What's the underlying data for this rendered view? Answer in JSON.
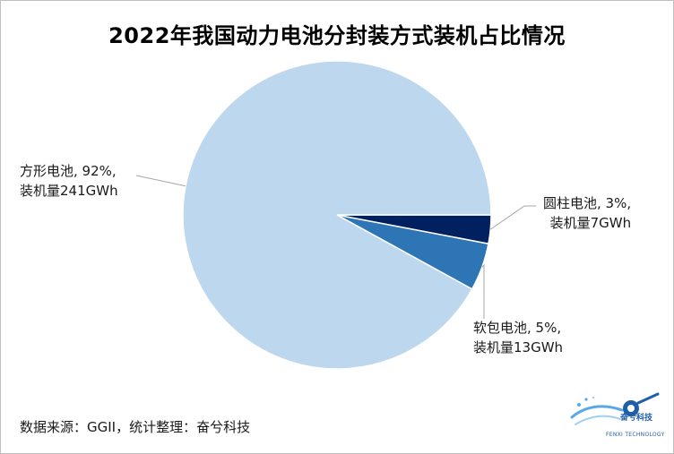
{
  "chart_data": {
    "type": "pie",
    "title": "2022年我国动力电池分封装方式装机占比情况",
    "slices": [
      {
        "name": "方形电池",
        "percent": 92,
        "value": 241,
        "unit": "GWh",
        "color": "#bdd7ee",
        "label_line1": "方形电池, 92%,",
        "label_line2": "装机量241GWh"
      },
      {
        "name": "软包电池",
        "percent": 5,
        "value": 13,
        "unit": "GWh",
        "color": "#2e75b6",
        "label_line1": "软包电池, 5%,",
        "label_line2": "装机量13GWh"
      },
      {
        "name": "圆柱电池",
        "percent": 3,
        "value": 7,
        "unit": "GWh",
        "color": "#002060",
        "label_line1": "圆柱电池, 3%,",
        "label_line2": "装机量7GWh"
      }
    ]
  },
  "footer": {
    "source": "数据来源：GGII，统计整理：奋兮科技",
    "logo_text": "奋兮科技",
    "logo_subtext": "FENXI TECHNOLOGY"
  }
}
